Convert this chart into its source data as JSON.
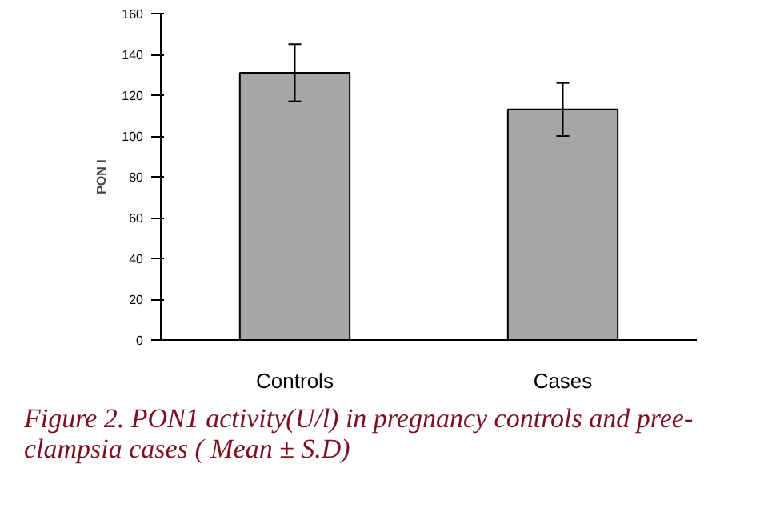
{
  "chart_data": {
    "type": "bar",
    "ylabel": "PON I",
    "categories": [
      "Controls",
      "Cases"
    ],
    "values": [
      131,
      113
    ],
    "errors": [
      14,
      13
    ],
    "color": "#a6a6a6",
    "ylim": [
      0,
      160
    ],
    "yticks": [
      0,
      20,
      40,
      60,
      80,
      100,
      120,
      140,
      160
    ],
    "grid": false,
    "annotations": [
      "Figure 2. PON1 activity(U/l) in pregnancy controls and pree-\nclampsia cases ( Mean ± S.D)"
    ]
  }
}
